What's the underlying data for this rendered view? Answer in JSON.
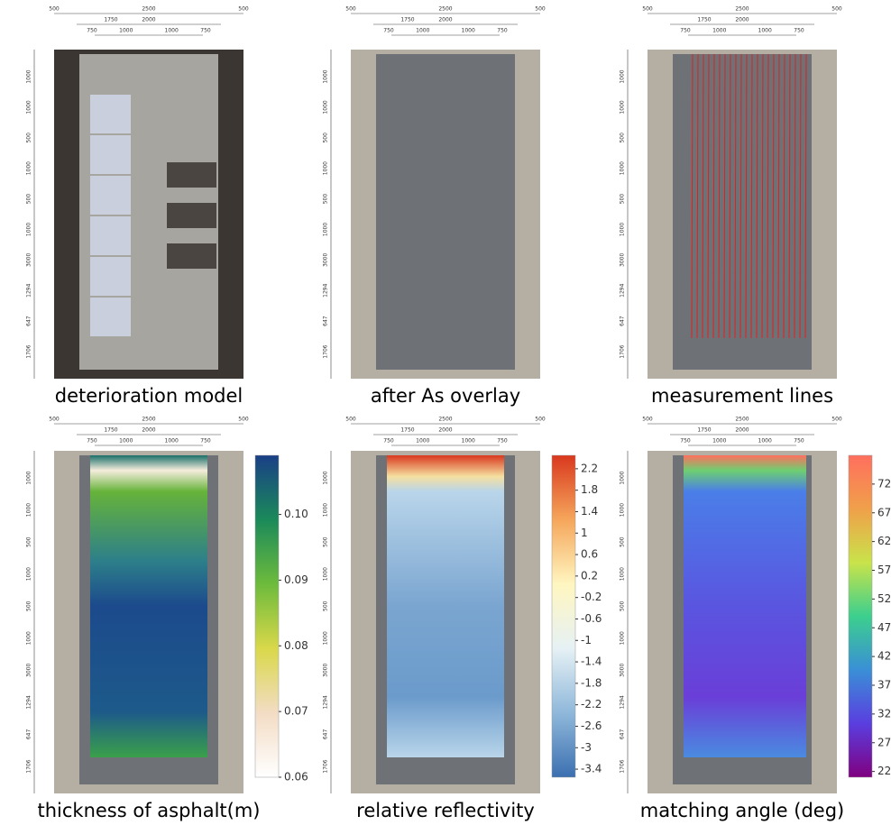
{
  "dimensions": {
    "top": [
      "500",
      "2500",
      "500",
      "1750",
      "2000",
      "750",
      "1000",
      "1000",
      "750"
    ],
    "left": [
      "1000",
      "1000",
      "500",
      "1000",
      "500",
      "1000",
      "3000",
      "1294",
      "647",
      "1706"
    ]
  },
  "panels": [
    {
      "caption": "deterioration model"
    },
    {
      "caption": "after As overlay"
    },
    {
      "caption": "measurement lines"
    },
    {
      "caption": "thickness of asphalt(m)",
      "colorbar": {
        "colors": [
          "#ffffff",
          "#f3dcc4",
          "#d9d84a",
          "#6dbb3c",
          "#1b8a5a",
          "#1a3f86"
        ],
        "lim": [
          0.06,
          0.109
        ],
        "ticks": [
          {
            "value": 0.1,
            "label": "0.10"
          },
          0.09,
          0.08,
          0.07,
          0.06
        ]
      }
    },
    {
      "caption": "relative reflectivity",
      "colorbar": {
        "colors": [
          "#3b6fb0",
          "#8fb8da",
          "#e6f1f5",
          "#fff6c0",
          "#f5a65b",
          "#d9381e"
        ],
        "lim": [
          -3.55,
          2.45
        ],
        "ticks": [
          2.2,
          1.8,
          1.4,
          1.0,
          0.6,
          0.2,
          -0.2,
          -0.6,
          -1.0,
          -1.4,
          -1.8,
          -2.2,
          -2.6,
          -3.0,
          -3.4
        ]
      }
    },
    {
      "caption": "matching angle (deg)",
      "colorbar": {
        "colors": [
          "#800080",
          "#5a3ee0",
          "#3a8fd6",
          "#3ccf8e",
          "#c9e34a",
          "#f0a04a",
          "#ff6f5e"
        ],
        "lim": [
          21,
          77
        ],
        "ticks": [
          72,
          67,
          62,
          57,
          52,
          47,
          42,
          37,
          32,
          27,
          22
        ]
      }
    }
  ]
}
